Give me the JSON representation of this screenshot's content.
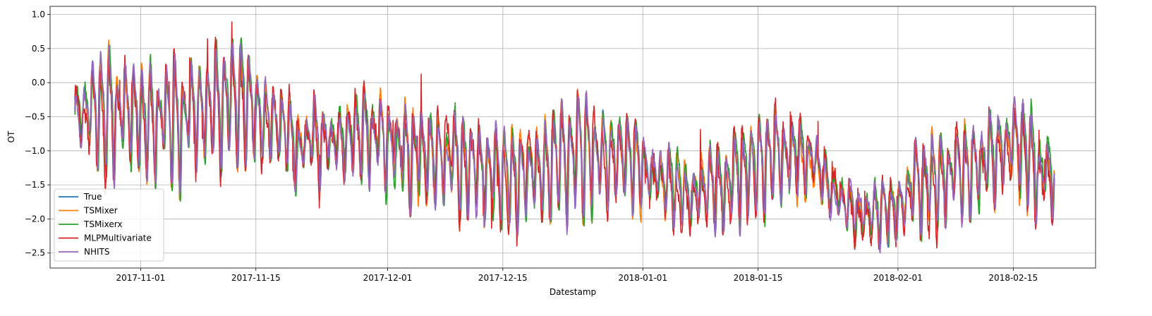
{
  "chart_data": {
    "type": "line",
    "title": "",
    "xlabel": "Datestamp",
    "ylabel": "OT",
    "x_start": "2017-10-24",
    "x_end": "2018-02-20",
    "xlim": [
      "2017-10-21",
      "2018-02-25"
    ],
    "ylim": [
      -2.72,
      1.12
    ],
    "x_ticks": [
      "2017-11-01",
      "2017-11-15",
      "2017-12-01",
      "2017-12-15",
      "2018-01-01",
      "2018-01-15",
      "2018-02-01",
      "2018-02-15"
    ],
    "y_ticks": [
      "1.0",
      "0.5",
      "0.0",
      "−0.5",
      "−1.0",
      "−1.5",
      "−2.0",
      "−2.5"
    ],
    "y_tick_values": [
      1.0,
      0.5,
      0.0,
      -0.5,
      -1.0,
      -1.5,
      -2.0,
      -2.5
    ],
    "grid": true,
    "legend_position": "bottom-left",
    "series": [
      {
        "name": "True",
        "color": "#1f77b4"
      },
      {
        "name": "TSMixer",
        "color": "#ff7f0e"
      },
      {
        "name": "TSMixerx",
        "color": "#2ca02c"
      },
      {
        "name": "MLPMultivariate",
        "color": "#d62728"
      },
      {
        "name": "NHITS",
        "color": "#9467bd"
      }
    ],
    "daily_mean_approx": [
      [
        "2017-10-24",
        -0.45
      ],
      [
        "2017-10-27",
        -0.3
      ],
      [
        "2017-10-30",
        -0.4
      ],
      [
        "2017-11-02",
        -0.55
      ],
      [
        "2017-11-05",
        -0.55
      ],
      [
        "2017-11-08",
        -0.4
      ],
      [
        "2017-11-11",
        -0.3
      ],
      [
        "2017-11-14",
        -0.25
      ],
      [
        "2017-11-17",
        -0.55
      ],
      [
        "2017-11-20",
        -0.9
      ],
      [
        "2017-11-23",
        -0.85
      ],
      [
        "2017-11-26",
        -0.8
      ],
      [
        "2017-11-29",
        -0.75
      ],
      [
        "2017-12-02",
        -0.95
      ],
      [
        "2017-12-05",
        -1.05
      ],
      [
        "2017-12-08",
        -1.1
      ],
      [
        "2017-12-11",
        -1.2
      ],
      [
        "2017-12-14",
        -1.3
      ],
      [
        "2017-12-17",
        -1.35
      ],
      [
        "2017-12-20",
        -1.25
      ],
      [
        "2017-12-23",
        -1.05
      ],
      [
        "2017-12-26",
        -1.0
      ],
      [
        "2017-12-29",
        -1.1
      ],
      [
        "2018-01-01",
        -1.15
      ],
      [
        "2018-01-04",
        -1.55
      ],
      [
        "2018-01-07",
        -1.6
      ],
      [
        "2018-01-10",
        -1.55
      ],
      [
        "2018-01-13",
        -1.35
      ],
      [
        "2018-01-16",
        -1.1
      ],
      [
        "2018-01-19",
        -1.05
      ],
      [
        "2018-01-22",
        -1.15
      ],
      [
        "2018-01-25",
        -1.8
      ],
      [
        "2018-01-28",
        -1.95
      ],
      [
        "2018-01-31",
        -1.85
      ],
      [
        "2018-02-03",
        -1.55
      ],
      [
        "2018-02-06",
        -1.4
      ],
      [
        "2018-02-09",
        -1.3
      ],
      [
        "2018-02-12",
        -1.1
      ],
      [
        "2018-02-15",
        -0.9
      ],
      [
        "2018-02-18",
        -1.25
      ],
      [
        "2018-02-20",
        -1.45
      ]
    ],
    "daily_amplitude_approx": [
      [
        "2017-10-24",
        0.6
      ],
      [
        "2017-11-10",
        0.55
      ],
      [
        "2017-11-20",
        0.4
      ],
      [
        "2017-12-10",
        0.45
      ],
      [
        "2017-12-25",
        0.55
      ],
      [
        "2018-01-05",
        0.3
      ],
      [
        "2018-01-15",
        0.45
      ],
      [
        "2018-01-25",
        0.2
      ],
      [
        "2018-02-05",
        0.45
      ],
      [
        "2018-02-20",
        0.4
      ]
    ]
  }
}
